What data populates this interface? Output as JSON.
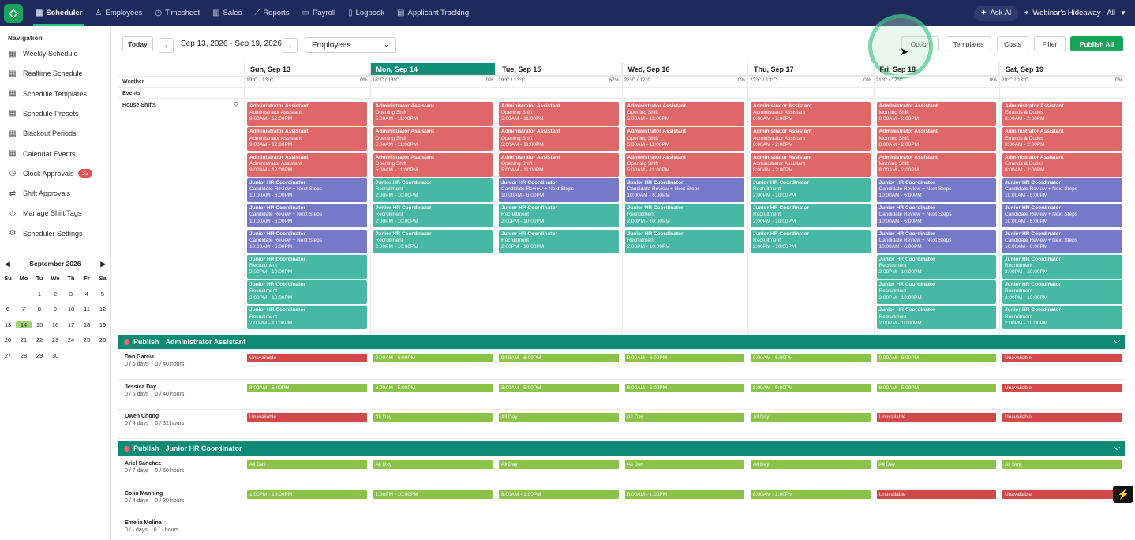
{
  "topnav": {
    "items": [
      {
        "label": "Scheduler",
        "icon": "calendar-icon",
        "active": true
      },
      {
        "label": "Employees",
        "icon": "user-icon"
      },
      {
        "label": "Timesheet",
        "icon": "clock-icon"
      },
      {
        "label": "Sales",
        "icon": "chart-icon"
      },
      {
        "label": "Reports",
        "icon": "trend-icon"
      },
      {
        "label": "Payroll",
        "icon": "payroll-icon"
      },
      {
        "label": "Logbook",
        "icon": "book-icon"
      },
      {
        "label": "Applicant Tracking",
        "icon": "doc-icon"
      }
    ],
    "ask_ai": "Ask AI",
    "location": "Webinar's Hideaway - All"
  },
  "sidebar": {
    "title": "Navigation",
    "items": [
      {
        "label": "Weekly Schedule"
      },
      {
        "label": "Realtime Schedule"
      },
      {
        "label": "Schedule Templates"
      },
      {
        "label": "Schedule Presets"
      },
      {
        "label": "Blackout Periods"
      },
      {
        "label": "Calendar Events"
      },
      {
        "label": "Clock Approvals",
        "badge": "32"
      },
      {
        "label": "Shift Approvals"
      },
      {
        "label": "Manage Shift Tags"
      },
      {
        "label": "Scheduler Settings"
      }
    ]
  },
  "calendar": {
    "month": "September 2026",
    "dow": [
      "Su",
      "Mo",
      "Tu",
      "We",
      "Th",
      "Fr",
      "Sa"
    ],
    "days": [
      "",
      "",
      "1",
      "2",
      "3",
      "4",
      "5",
      "6",
      "7",
      "8",
      "9",
      "10",
      "11",
      "12",
      "13",
      "14",
      "15",
      "16",
      "17",
      "18",
      "19",
      "20",
      "21",
      "22",
      "23",
      "24",
      "25",
      "26",
      "27",
      "28",
      "29",
      "30",
      "",
      "",
      ""
    ],
    "today": "14"
  },
  "toolbar": {
    "today": "Today",
    "range": "Sep 13, 2026 - Sep 19, 2026",
    "view": "Employees",
    "options": "Option",
    "templates": "Templates",
    "costs": "Costs",
    "filter": "Filter",
    "publish_all": "Publish All"
  },
  "days": [
    "Sun, Sep 13",
    "Mon, Sep 14",
    "Tue, Sep 15",
    "Wed, Sep 16",
    "Thu, Sep 17",
    "Fri, Sep 18",
    "Sat, Sep 19"
  ],
  "row_labels": {
    "weather": "Weather",
    "events": "Events",
    "house": "House Shifts"
  },
  "weather": [
    {
      "temp": "19°C / 13°C",
      "rain": "0%"
    },
    {
      "temp": "18°C / 13°C",
      "rain": "0%"
    },
    {
      "temp": "19°C / 13°C",
      "rain": "67%"
    },
    {
      "temp": "22°C / 12°C",
      "rain": "0%"
    },
    {
      "temp": "22°C / 13°C",
      "rain": "0%"
    },
    {
      "temp": "21°C / 12°C",
      "rain": "0%"
    },
    {
      "temp": "20°C / 13°C",
      "rain": "0%"
    }
  ],
  "shifts": [
    [
      {
        "c": "red",
        "t": "Administrator Assistant",
        "s": "Administrator Assistant",
        "h": "9:00AM - 12:00PM"
      },
      {
        "c": "red",
        "t": "Administrator Assistant",
        "s": "Administrator Assistant",
        "h": "9:00AM - 12:00PM"
      },
      {
        "c": "red",
        "t": "Administrator Assistant",
        "s": "Administrator Assistant",
        "h": "9:00AM - 12:00PM"
      },
      {
        "c": "purple",
        "t": "Junior HR Coordinator",
        "s": "Candidate Review + Next Steps",
        "h": "10:00AM - 6:00PM"
      },
      {
        "c": "purple",
        "t": "Junior HR Coordinator",
        "s": "Candidate Review + Next Steps",
        "h": "10:00AM - 6:00PM"
      },
      {
        "c": "purple",
        "t": "Junior HR Coordinator",
        "s": "Candidate Review + Next Steps",
        "h": "10:00AM - 6:00PM"
      },
      {
        "c": "teal",
        "t": "Junior HR Coordinator",
        "s": "Recruitment",
        "h": "2:00PM - 10:00PM"
      },
      {
        "c": "teal",
        "t": "Junior HR Coordinator",
        "s": "Recruitment",
        "h": "2:00PM - 10:00PM"
      },
      {
        "c": "teal",
        "t": "Junior HR Coordinator",
        "s": "Recruitment",
        "h": "2:00PM - 10:00PM"
      }
    ],
    [
      {
        "c": "red",
        "t": "Administrator Assistant",
        "s": "Opening Shift",
        "h": "5:00AM - 11:00PM"
      },
      {
        "c": "red",
        "t": "Administrator Assistant",
        "s": "Opening Shift",
        "h": "5:00AM - 11:00PM"
      },
      {
        "c": "red",
        "t": "Administrator Assistant",
        "s": "Opening Shift",
        "h": "5:00AM - 11:00PM"
      },
      {
        "c": "teal",
        "t": "Junior HR Coordinator",
        "s": "Recruitment",
        "h": "2:00PM - 10:00PM"
      },
      {
        "c": "teal",
        "t": "Junior HR Coordinator",
        "s": "Recruitment",
        "h": "2:00PM - 10:00PM"
      },
      {
        "c": "teal",
        "t": "Junior HR Coordinator",
        "s": "Recruitment",
        "h": "2:00PM - 10:00PM"
      }
    ],
    [
      {
        "c": "red",
        "t": "Administrator Assistant",
        "s": "Opening Shift",
        "h": "5:00AM - 11:00PM"
      },
      {
        "c": "red",
        "t": "Administrator Assistant",
        "s": "Opening Shift",
        "h": "5:00AM - 11:00PM"
      },
      {
        "c": "red",
        "t": "Administrator Assistant",
        "s": "Opening Shift",
        "h": "5:00AM - 11:00PM"
      },
      {
        "c": "purple",
        "t": "Junior HR Coordinator",
        "s": "Candidate Review + Next Steps",
        "h": "10:00AM - 6:00PM"
      },
      {
        "c": "teal",
        "t": "Junior HR Coordinator",
        "s": "Recruitment",
        "h": "2:00PM - 10:00PM"
      },
      {
        "c": "teal",
        "t": "Junior HR Coordinator",
        "s": "Recruitment",
        "h": "2:00PM - 10:00PM"
      }
    ],
    [
      {
        "c": "red",
        "t": "Administrator Assistant",
        "s": "Opening Shift",
        "h": "5:00AM - 11:00PM"
      },
      {
        "c": "red",
        "t": "Administrator Assistant",
        "s": "Opening Shift",
        "h": "5:00AM - 11:00PM"
      },
      {
        "c": "red",
        "t": "Administrator Assistant",
        "s": "Opening Shift",
        "h": "5:00AM - 11:00PM"
      },
      {
        "c": "purple",
        "t": "Junior HR Coordinator",
        "s": "Candidate Review + Next Steps",
        "h": "10:00AM - 6:00PM"
      },
      {
        "c": "teal",
        "t": "Junior HR Coordinator",
        "s": "Recruitment",
        "h": "2:00PM - 10:00PM"
      },
      {
        "c": "teal",
        "t": "Junior HR Coordinator",
        "s": "Recruitment",
        "h": "2:00PM - 10:00PM"
      }
    ],
    [
      {
        "c": "red",
        "t": "Administrator Assistant",
        "s": "Administrator Assistant",
        "h": "8:00AM - 2:00PM"
      },
      {
        "c": "red",
        "t": "Administrator Assistant",
        "s": "Administrator Assistant",
        "h": "8:00AM - 2:00PM"
      },
      {
        "c": "red",
        "t": "Administrator Assistant",
        "s": "Administrator Assistant",
        "h": "8:00AM - 2:00PM"
      },
      {
        "c": "teal",
        "t": "Junior HR Coordinator",
        "s": "Recruitment",
        "h": "2:00PM - 10:00PM"
      },
      {
        "c": "teal",
        "t": "Junior HR Coordinator",
        "s": "Recruitment",
        "h": "2:00PM - 10:00PM"
      },
      {
        "c": "teal",
        "t": "Junior HR Coordinator",
        "s": "Recruitment",
        "h": "2:00PM - 10:00PM"
      }
    ],
    [
      {
        "c": "red",
        "t": "Administrator Assistant",
        "s": "Morning Shift",
        "h": "8:00AM - 2:00PM"
      },
      {
        "c": "red",
        "t": "Administrator Assistant",
        "s": "Morning Shift",
        "h": "8:00AM - 2:00PM"
      },
      {
        "c": "red",
        "t": "Administrator Assistant",
        "s": "Morning Shift",
        "h": "8:00AM - 2:00PM"
      },
      {
        "c": "purple",
        "t": "Junior HR Coordinator",
        "s": "Candidate Review + Next Steps",
        "h": "10:00AM - 6:00PM"
      },
      {
        "c": "purple",
        "t": "Junior HR Coordinator",
        "s": "Candidate Review + Next Steps",
        "h": "10:00AM - 6:00PM"
      },
      {
        "c": "purple",
        "t": "Junior HR Coordinator",
        "s": "Candidate Review + Next Steps",
        "h": "10:00AM - 6:00PM"
      },
      {
        "c": "teal",
        "t": "Junior HR Coordinator",
        "s": "Recruitment",
        "h": "2:00PM - 10:00PM"
      },
      {
        "c": "teal",
        "t": "Junior HR Coordinator",
        "s": "Recruitment",
        "h": "2:00PM - 10:00PM"
      },
      {
        "c": "teal",
        "t": "Junior HR Coordinator",
        "s": "Recruitment",
        "h": "2:00PM - 10:00PM"
      }
    ],
    [
      {
        "c": "red",
        "t": "Administrator Assistant",
        "s": "Errands & Duties",
        "h": "8:00AM - 2:00PM"
      },
      {
        "c": "red",
        "t": "Administrator Assistant",
        "s": "Errands & Duties",
        "h": "8:00AM - 2:00PM"
      },
      {
        "c": "red",
        "t": "Administrator Assistant",
        "s": "Errands & Duties",
        "h": "8:00AM - 2:00PM"
      },
      {
        "c": "purple",
        "t": "Junior HR Coordinator",
        "s": "Candidate Review + Next Steps",
        "h": "10:00AM - 6:00PM"
      },
      {
        "c": "purple",
        "t": "Junior HR Coordinator",
        "s": "Candidate Review + Next Steps",
        "h": "10:00AM - 6:00PM"
      },
      {
        "c": "purple",
        "t": "Junior HR Coordinator",
        "s": "Candidate Review + Next Steps",
        "h": "10:00AM - 6:00PM"
      },
      {
        "c": "teal",
        "t": "Junior HR Coordinator",
        "s": "Recruitment",
        "h": "2:00PM - 10:00PM"
      },
      {
        "c": "teal",
        "t": "Junior HR Coordinator",
        "s": "Recruitment",
        "h": "2:00PM - 10:00PM"
      },
      {
        "c": "teal",
        "t": "Junior HR Coordinator",
        "s": "Recruitment",
        "h": "2:00PM - 10:00PM"
      }
    ]
  ],
  "groups": [
    {
      "publish": "Publish",
      "name": "Administrator Assistant",
      "employees": [
        {
          "name": "Dan Garcia",
          "days": "0 / 5 days",
          "hours": "0 / 40 hours",
          "cells": [
            [
              "u",
              "Unavailable"
            ],
            [
              "g",
              "9:00AM - 6:00PM"
            ],
            [
              "g",
              "9:00AM - 6:00PM"
            ],
            [
              "g",
              "9:00AM - 6:00PM"
            ],
            [
              "g",
              "9:00AM - 6:00PM"
            ],
            [
              "g",
              "9:00AM - 6:00PM"
            ],
            [
              "u",
              "Unavailable"
            ]
          ]
        },
        {
          "name": "Jessica Day",
          "days": "0 / 5 days",
          "hours": "0 / 40 hours",
          "cells": [
            [
              "g",
              "8:00AM - 5:00PM"
            ],
            [
              "g",
              "8:00AM - 5:00PM"
            ],
            [
              "g",
              "8:00AM - 5:00PM"
            ],
            [
              "g",
              "8:00AM - 5:00PM"
            ],
            [
              "g",
              "8:00AM - 5:00PM"
            ],
            [
              "g",
              "8:00AM - 5:00PM"
            ],
            [
              "u",
              "Unavailable"
            ]
          ]
        },
        {
          "name": "Owen Chong",
          "days": "0 / 4 days",
          "hours": "0 / 32 hours",
          "cells": [
            [
              "u",
              "Unavailable"
            ],
            [
              "g",
              "All Day"
            ],
            [
              "g",
              "All Day"
            ],
            [
              "g",
              "All Day"
            ],
            [
              "g",
              "All Day"
            ],
            [
              "u",
              "Unavailable"
            ],
            [
              "u",
              "Unavailable"
            ]
          ]
        }
      ]
    },
    {
      "publish": "Publish",
      "name": "Junior HR Coordinator",
      "employees": [
        {
          "name": "Ariel Sanchez",
          "days": "0 / 7 days",
          "hours": "0 / 60 hours",
          "cells": [
            [
              "g",
              "All Day"
            ],
            [
              "g",
              "All Day"
            ],
            [
              "g",
              "All Day"
            ],
            [
              "g",
              "All Day"
            ],
            [
              "g",
              "All Day"
            ],
            [
              "g",
              "All Day"
            ],
            [
              "g",
              "All Day"
            ]
          ]
        },
        {
          "name": "Colin Manning",
          "days": "0 / 4 days",
          "hours": "0 / 30 hours",
          "cells": [
            [
              "g",
              "1:00PM - 10:00PM"
            ],
            [
              "g",
              "1:00PM - 10:00PM"
            ],
            [
              "g",
              "8:00AM - 1:00PM"
            ],
            [
              "g",
              "8:00AM - 1:00PM"
            ],
            [
              "g",
              "8:00AM - 1:00PM"
            ],
            [
              "u",
              "Unavailable"
            ],
            [
              "u",
              "Unavailable"
            ]
          ]
        },
        {
          "name": "Emelia Molina",
          "days": "0 / - days",
          "hours": "0 / - hours",
          "cells": []
        }
      ]
    }
  ]
}
